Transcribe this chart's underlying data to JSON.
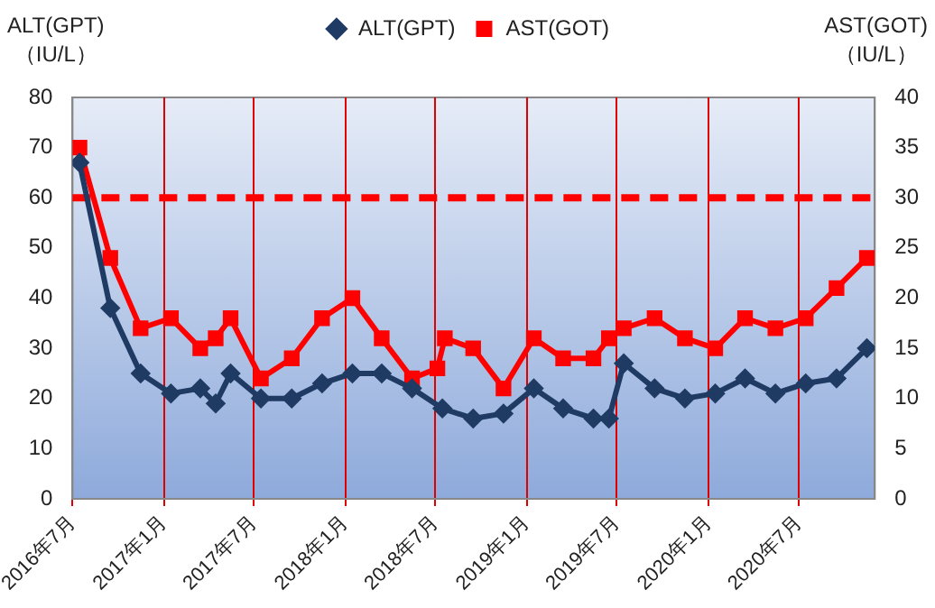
{
  "chart_data": {
    "type": "line",
    "ylabel": "ALT(GPT)\n（IU/L）",
    "y2label": "AST(GOT)\n（IU/L）",
    "xlim": [
      "2016-07-01",
      "2020-12-01"
    ],
    "xticks": [
      {
        "value": "2016-07-01",
        "label": "2016年7月"
      },
      {
        "value": "2017-01-01",
        "label": "2017年1月"
      },
      {
        "value": "2017-07-01",
        "label": "2017年7月"
      },
      {
        "value": "2018-01-01",
        "label": "2018年1月"
      },
      {
        "value": "2018-07-01",
        "label": "2018年7月"
      },
      {
        "value": "2019-01-01",
        "label": "2019年1月"
      },
      {
        "value": "2019-07-01",
        "label": "2019年7月"
      },
      {
        "value": "2020-01-01",
        "label": "2020年1月"
      },
      {
        "value": "2020-07-01",
        "label": "2020年7月"
      }
    ],
    "ylim": [
      0,
      80
    ],
    "yticks": [
      0,
      10,
      20,
      30,
      40,
      50,
      60,
      70,
      80
    ],
    "y2lim": [
      0,
      40
    ],
    "y2ticks": [
      0,
      5,
      10,
      15,
      20,
      25,
      30,
      35,
      40
    ],
    "series": [
      {
        "name": "ALT(GPT)",
        "color": "#1f3b64",
        "marker": "diamond",
        "x": [
          "2016-07-15",
          "2016-09-15",
          "2016-11-15",
          "2017-01-15",
          "2017-03-15",
          "2017-04-15",
          "2017-05-15",
          "2017-07-15",
          "2017-09-15",
          "2017-11-15",
          "2018-01-15",
          "2018-03-15",
          "2018-05-15",
          "2018-07-15",
          "2018-09-15",
          "2018-11-15",
          "2019-01-15",
          "2019-03-15",
          "2019-05-15",
          "2019-06-15",
          "2019-07-15",
          "2019-09-15",
          "2019-11-15",
          "2020-01-15",
          "2020-03-15",
          "2020-05-15",
          "2020-07-15",
          "2020-09-15",
          "2020-11-15"
        ],
        "values": [
          67,
          38,
          25,
          21,
          22,
          19,
          25,
          20,
          20,
          23,
          25,
          25,
          22,
          18,
          16,
          17,
          22,
          18,
          16,
          16,
          27,
          22,
          20,
          21,
          24,
          21,
          23,
          24,
          30
        ]
      },
      {
        "name": "AST(GOT)",
        "color": "#ff0000",
        "marker": "square",
        "axis": "y2",
        "x": [
          "2016-07-15",
          "2016-09-15",
          "2016-11-15",
          "2017-01-15",
          "2017-03-15",
          "2017-04-15",
          "2017-05-15",
          "2017-07-15",
          "2017-09-15",
          "2017-11-15",
          "2018-01-15",
          "2018-03-15",
          "2018-05-15",
          "2018-07-05",
          "2018-07-20",
          "2018-09-15",
          "2018-11-15",
          "2019-01-15",
          "2019-03-15",
          "2019-05-15",
          "2019-06-15",
          "2019-07-15",
          "2019-09-15",
          "2019-11-15",
          "2020-01-15",
          "2020-03-15",
          "2020-05-15",
          "2020-07-15",
          "2020-09-15",
          "2020-11-15"
        ],
        "values": [
          35,
          24,
          17,
          18,
          15,
          16,
          18,
          12,
          14,
          18,
          20,
          16,
          12,
          13,
          16,
          15,
          11,
          16,
          14,
          14,
          16,
          17,
          18,
          16,
          15,
          18,
          17,
          18,
          21,
          24
        ]
      }
    ],
    "ref_lines": [
      {
        "axis": "y2",
        "value": 30,
        "color": "#ff0000",
        "line_style": "dashed"
      }
    ],
    "grid": "x",
    "legend": "top"
  }
}
